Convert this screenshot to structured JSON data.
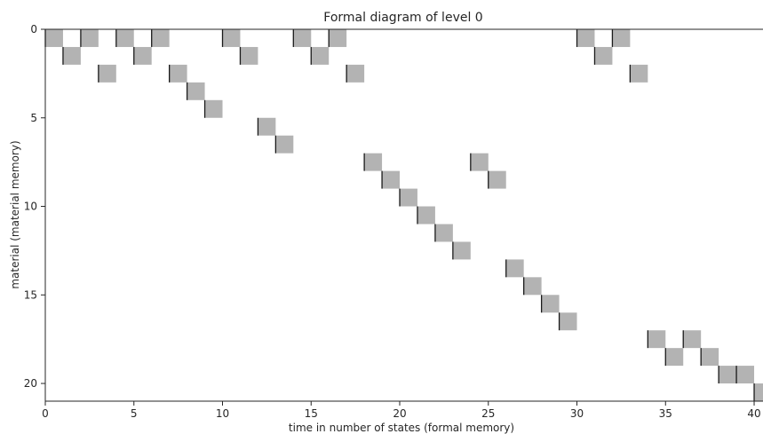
{
  "chart_data": {
    "type": "heatmap",
    "title": "Formal diagram of level 0",
    "xlabel": "time in number of states (formal memory)",
    "ylabel": "material (material memory)",
    "xlim": [
      0,
      40.5
    ],
    "ylim": [
      21,
      0
    ],
    "x_ticks": [
      0,
      5,
      10,
      15,
      20,
      25,
      30,
      35,
      40
    ],
    "y_ticks": [
      0,
      5,
      10,
      15,
      20
    ],
    "grid": false,
    "cell_color": "#b3b3b3",
    "edge_color": "#1a1a1a",
    "cells": [
      {
        "t": 0,
        "m": 0
      },
      {
        "t": 2,
        "m": 0
      },
      {
        "t": 4,
        "m": 0
      },
      {
        "t": 6,
        "m": 0
      },
      {
        "t": 10,
        "m": 0
      },
      {
        "t": 14,
        "m": 0
      },
      {
        "t": 16,
        "m": 0
      },
      {
        "t": 30,
        "m": 0
      },
      {
        "t": 32,
        "m": 0
      },
      {
        "t": 1,
        "m": 1
      },
      {
        "t": 5,
        "m": 1
      },
      {
        "t": 11,
        "m": 1
      },
      {
        "t": 15,
        "m": 1
      },
      {
        "t": 31,
        "m": 1
      },
      {
        "t": 3,
        "m": 2
      },
      {
        "t": 7,
        "m": 2
      },
      {
        "t": 17,
        "m": 2
      },
      {
        "t": 33,
        "m": 2
      },
      {
        "t": 8,
        "m": 3
      },
      {
        "t": 9,
        "m": 4
      },
      {
        "t": 12,
        "m": 5
      },
      {
        "t": 13,
        "m": 6
      },
      {
        "t": 18,
        "m": 7
      },
      {
        "t": 24,
        "m": 7
      },
      {
        "t": 19,
        "m": 8
      },
      {
        "t": 25,
        "m": 8
      },
      {
        "t": 20,
        "m": 9
      },
      {
        "t": 21,
        "m": 10
      },
      {
        "t": 22,
        "m": 11
      },
      {
        "t": 23,
        "m": 12
      },
      {
        "t": 26,
        "m": 13
      },
      {
        "t": 27,
        "m": 14
      },
      {
        "t": 28,
        "m": 15
      },
      {
        "t": 29,
        "m": 16
      },
      {
        "t": 34,
        "m": 17
      },
      {
        "t": 36,
        "m": 17
      },
      {
        "t": 35,
        "m": 18
      },
      {
        "t": 37,
        "m": 18
      },
      {
        "t": 38,
        "m": 19
      },
      {
        "t": 39,
        "m": 19
      },
      {
        "t": 40,
        "m": 20
      }
    ]
  }
}
